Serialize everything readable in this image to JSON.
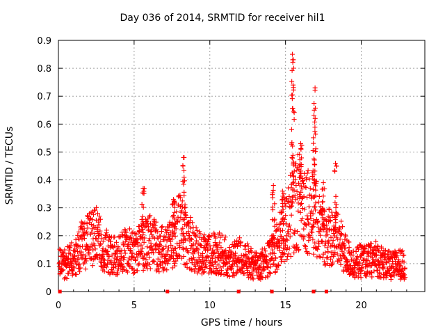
{
  "chart_data": {
    "type": "scatter",
    "title": "Day 036 of 2014, SRMTID for receiver hil1",
    "xlabel": "GPS time / hours",
    "ylabel": "SRMTID / TECUs",
    "xlim": [
      0,
      24.2
    ],
    "ylim": [
      0,
      0.9
    ],
    "xticks": [
      0,
      5,
      10,
      15,
      20
    ],
    "yticks": [
      0,
      0.1,
      0.2,
      0.3,
      0.4,
      0.5,
      0.6,
      0.7,
      0.8,
      0.9
    ],
    "grid": true,
    "marker": "+",
    "color": "#ff0000",
    "series": [
      {
        "name": "SRMTID",
        "profile": [
          {
            "x": 0.0,
            "y": 0.1
          },
          {
            "x": 0.5,
            "y": 0.1
          },
          {
            "x": 1.0,
            "y": 0.12
          },
          {
            "x": 1.5,
            "y": 0.16
          },
          {
            "x": 2.0,
            "y": 0.18
          },
          {
            "x": 2.5,
            "y": 0.2
          },
          {
            "x": 3.0,
            "y": 0.15
          },
          {
            "x": 3.5,
            "y": 0.13
          },
          {
            "x": 4.0,
            "y": 0.13
          },
          {
            "x": 4.5,
            "y": 0.15
          },
          {
            "x": 5.0,
            "y": 0.14
          },
          {
            "x": 5.5,
            "y": 0.16
          },
          {
            "x": 6.0,
            "y": 0.18
          },
          {
            "x": 6.5,
            "y": 0.16
          },
          {
            "x": 7.0,
            "y": 0.15
          },
          {
            "x": 7.5,
            "y": 0.17
          },
          {
            "x": 8.0,
            "y": 0.23
          },
          {
            "x": 8.5,
            "y": 0.19
          },
          {
            "x": 9.0,
            "y": 0.15
          },
          {
            "x": 9.5,
            "y": 0.14
          },
          {
            "x": 10.0,
            "y": 0.13
          },
          {
            "x": 10.5,
            "y": 0.14
          },
          {
            "x": 11.0,
            "y": 0.13
          },
          {
            "x": 11.5,
            "y": 0.11
          },
          {
            "x": 12.0,
            "y": 0.13
          },
          {
            "x": 12.5,
            "y": 0.11
          },
          {
            "x": 13.0,
            "y": 0.09
          },
          {
            "x": 13.5,
            "y": 0.1
          },
          {
            "x": 14.0,
            "y": 0.12
          },
          {
            "x": 14.5,
            "y": 0.17
          },
          {
            "x": 15.0,
            "y": 0.22
          },
          {
            "x": 15.5,
            "y": 0.3
          },
          {
            "x": 16.0,
            "y": 0.33
          },
          {
            "x": 16.5,
            "y": 0.3
          },
          {
            "x": 17.0,
            "y": 0.26
          },
          {
            "x": 17.5,
            "y": 0.2
          },
          {
            "x": 18.0,
            "y": 0.2
          },
          {
            "x": 18.5,
            "y": 0.18
          },
          {
            "x": 19.0,
            "y": 0.13
          },
          {
            "x": 19.5,
            "y": 0.1
          },
          {
            "x": 20.0,
            "y": 0.11
          },
          {
            "x": 20.5,
            "y": 0.11
          },
          {
            "x": 21.0,
            "y": 0.12
          },
          {
            "x": 21.5,
            "y": 0.1
          },
          {
            "x": 22.0,
            "y": 0.09
          },
          {
            "x": 22.5,
            "y": 0.1
          },
          {
            "x": 22.9,
            "y": 0.09
          }
        ],
        "peaks": [
          {
            "x": 8.3,
            "y": 0.48
          },
          {
            "x": 14.2,
            "y": 0.38
          },
          {
            "x": 14.8,
            "y": 0.36
          },
          {
            "x": 15.45,
            "y": 0.85
          },
          {
            "x": 15.5,
            "y": 0.74
          },
          {
            "x": 16.0,
            "y": 0.53
          },
          {
            "x": 16.95,
            "y": 0.73
          },
          {
            "x": 16.9,
            "y": 0.65
          },
          {
            "x": 17.5,
            "y": 0.39
          },
          {
            "x": 18.3,
            "y": 0.46
          },
          {
            "x": 5.6,
            "y": 0.37
          },
          {
            "x": 7.6,
            "y": 0.33
          }
        ],
        "zero_markers": [
          0.1,
          7.2,
          11.9,
          14.1,
          16.85,
          17.7
        ]
      }
    ]
  }
}
